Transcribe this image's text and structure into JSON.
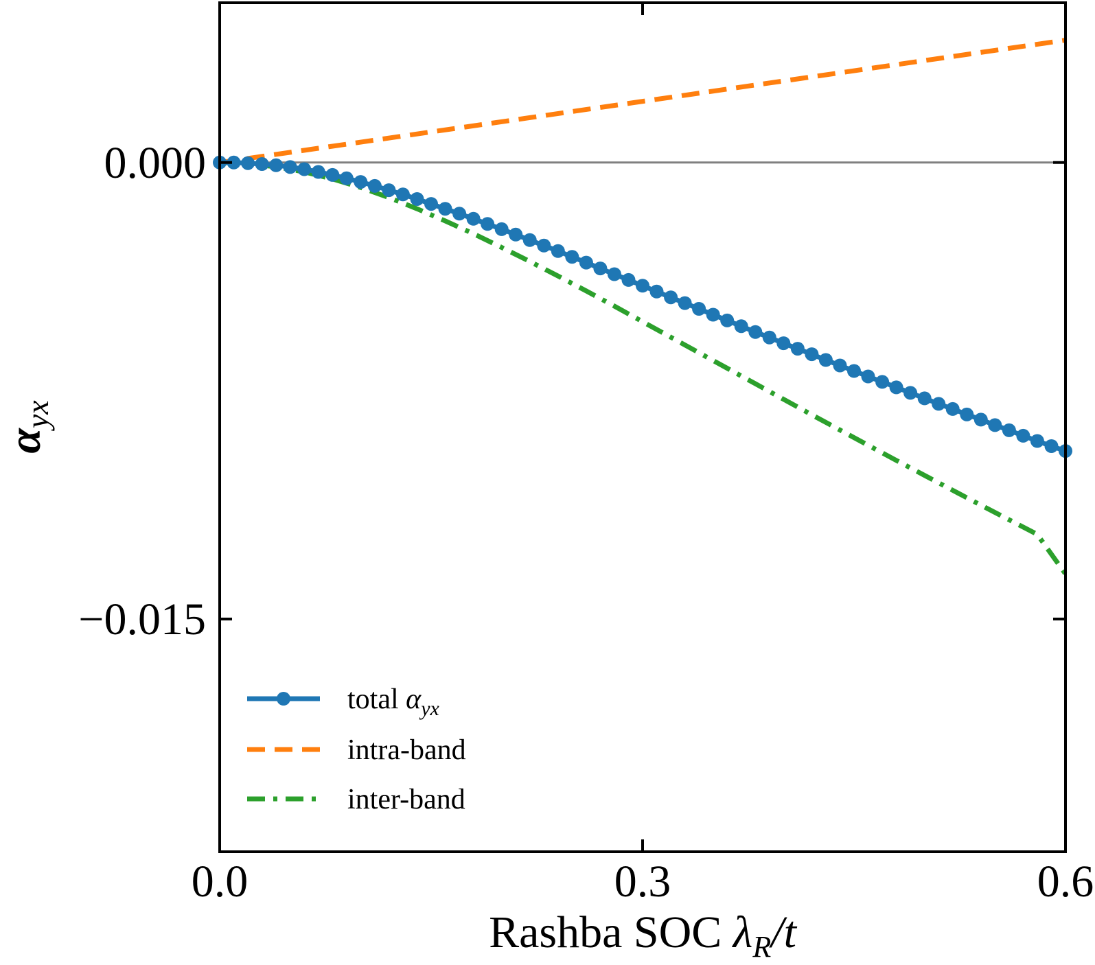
{
  "chart_data": {
    "type": "line",
    "xlabel": "Rashba SOC ",
    "xlabel_math": "λ",
    "xlabel_sub": "R",
    "xlabel_tail": "/t",
    "ylabel": "α",
    "ylabel_sub": "yx",
    "xlim": [
      0.0,
      0.6
    ],
    "ylim": [
      -0.02265,
      0.00525
    ],
    "x_ticks": [
      0.0,
      0.3,
      0.6
    ],
    "x_tick_labels": [
      "0.0",
      "0.3",
      "0.6"
    ],
    "y_ticks": [
      0.0,
      -0.015
    ],
    "y_tick_labels": [
      "0.000",
      "−0.015"
    ],
    "reference_line_y": 0.0,
    "legend_position": "lower-left",
    "grid": false,
    "series": [
      {
        "name": "total",
        "name_math": "α",
        "name_sub": "yx",
        "color": "#1f77b4",
        "style": "solid-with-markers",
        "x": [
          0.0,
          0.01,
          0.02,
          0.03,
          0.04,
          0.05,
          0.06,
          0.07,
          0.08,
          0.09,
          0.1,
          0.11,
          0.12,
          0.13,
          0.14,
          0.15,
          0.16,
          0.17,
          0.18,
          0.19,
          0.2,
          0.21,
          0.22,
          0.23,
          0.24,
          0.25,
          0.26,
          0.27,
          0.28,
          0.29,
          0.3,
          0.31,
          0.32,
          0.33,
          0.34,
          0.35,
          0.36,
          0.37,
          0.38,
          0.39,
          0.4,
          0.41,
          0.42,
          0.43,
          0.44,
          0.45,
          0.46,
          0.47,
          0.48,
          0.49,
          0.5,
          0.51,
          0.52,
          0.53,
          0.54,
          0.55,
          0.56,
          0.57,
          0.58,
          0.59,
          0.6
        ],
        "y": [
          0.0,
          0.0,
          -2e-05,
          -5e-05,
          -9e-05,
          -0.00015,
          -0.00022,
          -0.00031,
          -0.00041,
          -0.00052,
          -0.00064,
          -0.00077,
          -0.00091,
          -0.00105,
          -0.0012,
          -0.00136,
          -0.00152,
          -0.00168,
          -0.00185,
          -0.00202,
          -0.00219,
          -0.00237,
          -0.00255,
          -0.00273,
          -0.00291,
          -0.0031,
          -0.00329,
          -0.00348,
          -0.00367,
          -0.00386,
          -0.00405,
          -0.00424,
          -0.00443,
          -0.00462,
          -0.00481,
          -0.005,
          -0.00519,
          -0.00538,
          -0.00557,
          -0.00575,
          -0.00594,
          -0.00612,
          -0.0063,
          -0.00649,
          -0.00667,
          -0.00685,
          -0.00703,
          -0.00721,
          -0.00739,
          -0.00757,
          -0.00775,
          -0.00793,
          -0.0081,
          -0.00828,
          -0.00845,
          -0.00863,
          -0.0088,
          -0.00898,
          -0.00915,
          -0.00932,
          -0.00948
        ]
      },
      {
        "name": "intra-band",
        "color": "#ff7f0e",
        "style": "dashed",
        "x": [
          0.0,
          0.6
        ],
        "y": [
          0.0,
          0.00402
        ]
      },
      {
        "name": "inter-band",
        "color": "#2ca02c",
        "style": "dashdot",
        "x": [
          0.0,
          0.02,
          0.04,
          0.06,
          0.08,
          0.1,
          0.12,
          0.14,
          0.16,
          0.18,
          0.2,
          0.22,
          0.24,
          0.26,
          0.28,
          0.3,
          0.32,
          0.34,
          0.36,
          0.38,
          0.4,
          0.42,
          0.44,
          0.46,
          0.48,
          0.5,
          0.52,
          0.54,
          0.56,
          0.58,
          0.6
        ],
        "y": [
          0.0,
          -4e-05,
          -0.00014,
          -0.00031,
          -0.00054,
          -0.00082,
          -0.00115,
          -0.00152,
          -0.00192,
          -0.00234,
          -0.00279,
          -0.00325,
          -0.00373,
          -0.00422,
          -0.00472,
          -0.00523,
          -0.00574,
          -0.00625,
          -0.00676,
          -0.00727,
          -0.00778,
          -0.00829,
          -0.00879,
          -0.00929,
          -0.00979,
          -0.01028,
          -0.01077,
          -0.01126,
          -0.01174,
          -0.01222,
          -0.01352
        ]
      }
    ]
  }
}
